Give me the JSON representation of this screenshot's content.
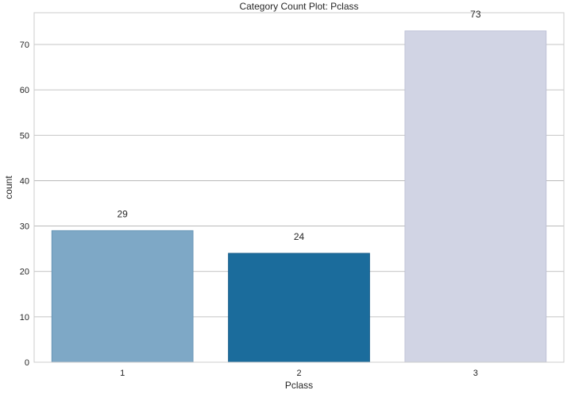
{
  "chart_data": {
    "type": "bar",
    "title": "Category Count Plot: Pclass",
    "xlabel": "Pclass",
    "ylabel": "count",
    "categories": [
      "1",
      "2",
      "3"
    ],
    "values": [
      29,
      24,
      73
    ],
    "data_labels": [
      "29",
      "24",
      "73"
    ],
    "colors": [
      "#7ea8c6",
      "#1b6c9c",
      "#d1d4e4"
    ],
    "edge_colors": [
      "#5f8fb1",
      "#0f5582",
      "#b9bdd3"
    ],
    "ylim": [
      0,
      77
    ],
    "yticks": [
      0,
      10,
      20,
      30,
      40,
      50,
      60,
      70
    ],
    "ytick_labels": [
      "0",
      "10",
      "20",
      "30",
      "40",
      "50",
      "60",
      "70"
    ],
    "grid": "horizontal",
    "legend": "none"
  }
}
